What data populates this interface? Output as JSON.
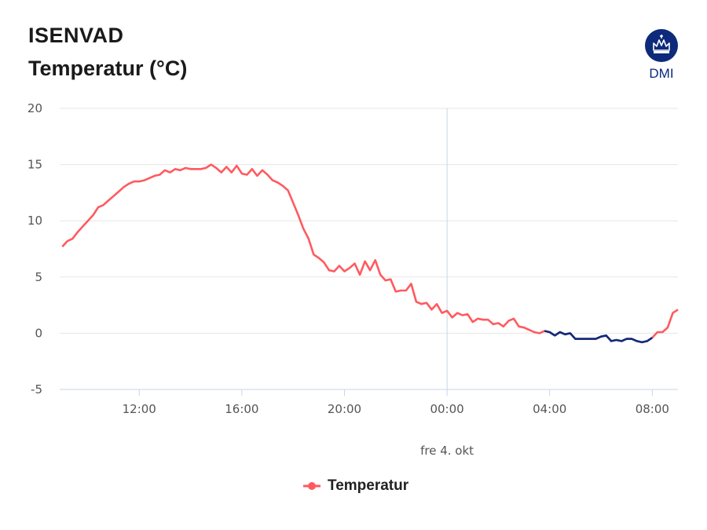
{
  "header": {
    "station": "ISENVAD",
    "metric": "Temperatur (°C)",
    "logo_text": "DMI"
  },
  "colors": {
    "observed": "#ff5a5f",
    "forecast": "#0d2b7a",
    "grid": "#e6e6e6",
    "axis": "#c8d4ea",
    "logo_bg": "#0d2b7a"
  },
  "icons": {
    "logo": "crown-emblem-icon",
    "legend_marker": "legend-circle-icon"
  },
  "chart_data": {
    "type": "line",
    "title": "Temperatur (°C)",
    "ylim": [
      -5,
      20
    ],
    "y_ticks": [
      -5,
      0,
      5,
      10,
      15,
      20
    ],
    "y_tick_labels": [
      "-5",
      "0",
      "5",
      "10",
      "15",
      "20"
    ],
    "xlim_hours": [
      8.9,
      33.0
    ],
    "x_ticks": [
      12,
      16,
      20,
      24,
      28,
      32
    ],
    "x_tick_labels": [
      "12:00",
      "16:00",
      "20:00",
      "00:00",
      "04:00",
      "08:00"
    ],
    "day_marker": {
      "x": 24,
      "label": "fre 4. okt"
    },
    "legend": {
      "entries": [
        "Temperatur"
      ],
      "position": "bottom-center"
    },
    "series": [
      {
        "name": "Temperatur",
        "x": [
          9.0,
          9.2,
          9.4,
          9.6,
          9.8,
          10.0,
          10.2,
          10.4,
          10.6,
          10.8,
          11.0,
          11.2,
          11.4,
          11.6,
          11.8,
          12.0,
          12.2,
          12.4,
          12.6,
          12.8,
          13.0,
          13.2,
          13.4,
          13.6,
          13.8,
          14.0,
          14.2,
          14.4,
          14.6,
          14.8,
          15.0,
          15.2,
          15.4,
          15.6,
          15.8,
          16.0,
          16.2,
          16.4,
          16.6,
          16.8,
          17.0,
          17.2,
          17.4,
          17.6,
          17.8,
          18.0,
          18.2,
          18.4,
          18.6,
          18.8,
          19.0,
          19.2,
          19.4,
          19.6,
          19.8,
          20.0,
          20.2,
          20.4,
          20.6,
          20.8,
          21.0,
          21.2,
          21.4,
          21.6,
          21.8,
          22.0,
          22.2,
          22.4,
          22.6,
          22.8,
          23.0,
          23.2,
          23.4,
          23.6,
          23.8,
          24.0,
          24.2,
          24.4,
          24.6,
          24.8,
          25.0,
          25.2,
          25.4,
          25.6,
          25.8,
          26.0,
          26.2,
          26.4,
          26.6,
          26.8,
          27.0,
          27.2,
          27.4,
          27.6,
          27.8,
          28.0,
          28.2,
          28.4,
          28.6,
          28.8,
          29.0,
          29.2,
          29.4,
          29.6,
          29.8,
          30.0,
          30.2,
          30.4,
          30.6,
          30.8,
          31.0,
          31.2,
          31.4,
          31.6,
          31.8,
          32.0,
          32.2,
          32.4,
          32.6,
          32.8,
          33.0
        ],
        "y": [
          7.7,
          8.2,
          8.4,
          9.0,
          9.5,
          10.0,
          10.5,
          11.2,
          11.4,
          11.8,
          12.2,
          12.6,
          13.0,
          13.3,
          13.5,
          13.5,
          13.6,
          13.8,
          14.0,
          14.1,
          14.5,
          14.3,
          14.6,
          14.5,
          14.7,
          14.6,
          14.6,
          14.6,
          14.7,
          15.0,
          14.7,
          14.3,
          14.8,
          14.3,
          14.9,
          14.2,
          14.1,
          14.6,
          14.0,
          14.5,
          14.1,
          13.6,
          13.4,
          13.1,
          12.7,
          11.6,
          10.5,
          9.3,
          8.4,
          7.0,
          6.7,
          6.3,
          5.6,
          5.5,
          6.0,
          5.5,
          5.8,
          6.2,
          5.2,
          6.4,
          5.6,
          6.5,
          5.2,
          4.7,
          4.8,
          3.7,
          3.8,
          3.8,
          4.4,
          2.8,
          2.6,
          2.7,
          2.1,
          2.6,
          1.8,
          2.0,
          1.4,
          1.8,
          1.6,
          1.7,
          1.0,
          1.3,
          1.2,
          1.2,
          0.8,
          0.9,
          0.6,
          1.1,
          1.3,
          0.6,
          0.5,
          0.3,
          0.1,
          0.0,
          0.2,
          0.1,
          -0.2,
          0.1,
          -0.1,
          0.0,
          -0.5,
          -0.5,
          -0.5,
          -0.5,
          -0.5,
          -0.3,
          -0.2,
          -0.7,
          -0.6,
          -0.7,
          -0.5,
          -0.5,
          -0.7,
          -0.8,
          -0.7,
          -0.4,
          0.1,
          0.1,
          0.5,
          1.8,
          2.1
        ],
        "forecast_from_x": 27.8,
        "forecast_to_x": 32.0
      }
    ]
  }
}
